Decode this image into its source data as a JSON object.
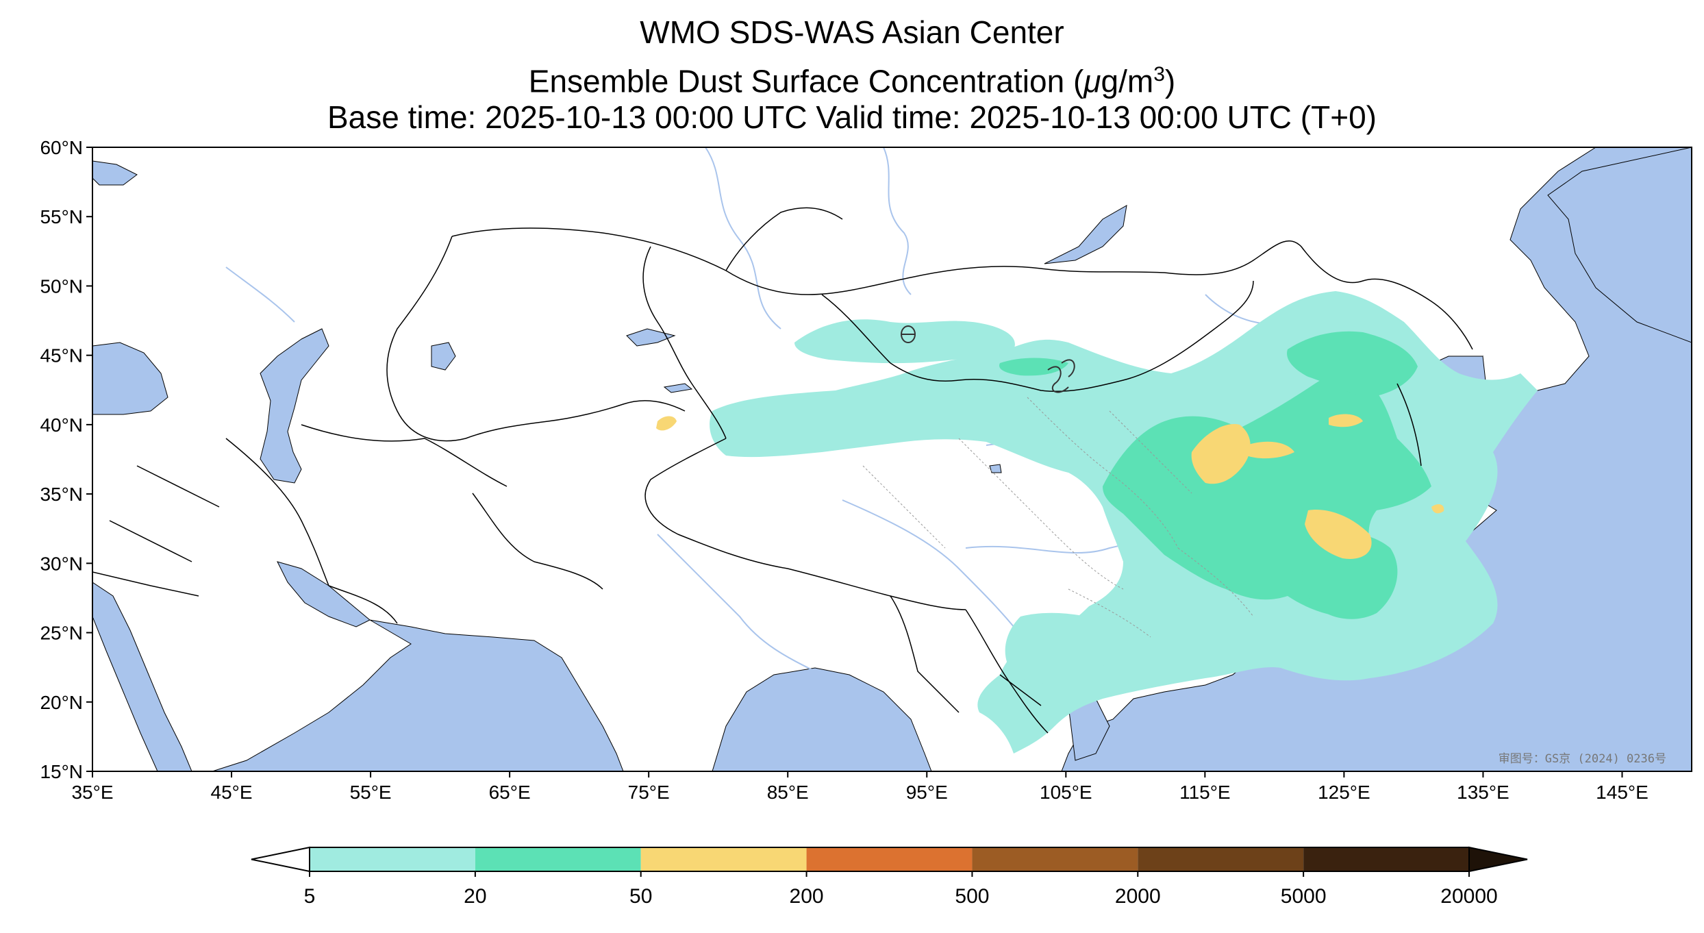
{
  "title": {
    "line1": "WMO SDS-WAS Asian Center",
    "line2_prefix": "Ensemble Dust Surface Concentration (",
    "line2_unit_mu": "μ",
    "line2_unit": "g/m",
    "line2_sup": "3",
    "line2_suffix": ")",
    "line3": "Base time: 2025-10-13 00:00 UTC Valid time: 2025-10-13 00:00 UTC (T+0)"
  },
  "map": {
    "lon_range": [
      35,
      150
    ],
    "lat_range": [
      15,
      60
    ],
    "x_ticks": [
      "35°E",
      "45°E",
      "55°E",
      "65°E",
      "75°E",
      "85°E",
      "95°E",
      "105°E",
      "115°E",
      "125°E",
      "135°E",
      "145°E"
    ],
    "y_ticks": [
      "60°N",
      "55°N",
      "50°N",
      "45°N",
      "40°N",
      "35°N",
      "30°N",
      "25°N",
      "20°N",
      "15°N"
    ],
    "colors": {
      "ocean": "#a9c4ec",
      "land": "#ffffff",
      "border": "#000000",
      "river": "#a9c4ec"
    },
    "watermark": "审图号：GS京 (2024) 0236号"
  },
  "colorbar": {
    "boundaries": [
      "5",
      "20",
      "50",
      "200",
      "500",
      "2000",
      "5000",
      "20000"
    ],
    "colors": [
      "#a0ebe0",
      "#5ce1b5",
      "#f8d774",
      "#dc7230",
      "#9c5c24",
      "#6d4119",
      "#3a220f"
    ],
    "under_color": "#ffffff",
    "over_color": "#1e1208"
  }
}
